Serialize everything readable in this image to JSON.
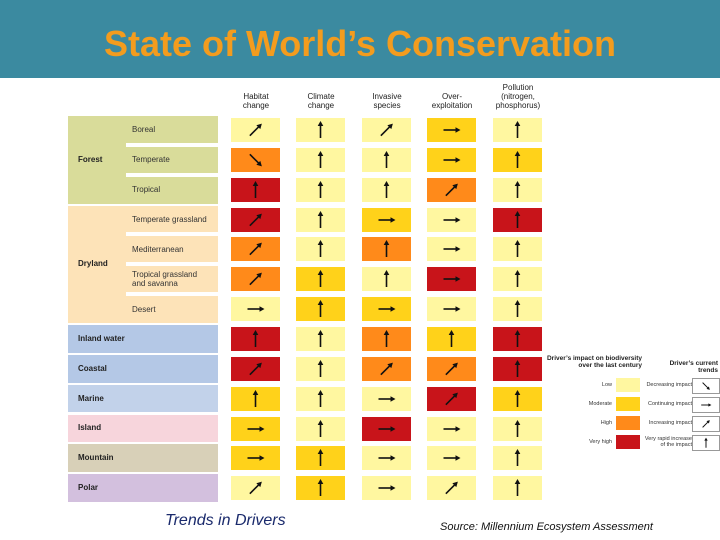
{
  "title": "State of World’s Conservation",
  "columns": [
    "Habitat\nchange",
    "Climate\nchange",
    "Invasive\nspecies",
    "Over-\nexploitation",
    "Pollution\n(nitrogen,\nphosphorus)"
  ],
  "groups": [
    {
      "label": "Forest",
      "color": "#d9dc9a",
      "subs": [
        "Boreal",
        "Temperate",
        "Tropical"
      ]
    },
    {
      "label": "Dryland",
      "color": "#fde3b8",
      "subs": [
        "Temperate grassland",
        "Mediterranean",
        "Tropical grassland\nand savanna",
        "Desert"
      ]
    },
    {
      "label": "Inland water",
      "color": "#b4c8e6",
      "subs": []
    },
    {
      "label": "Coastal",
      "color": "#b4c8e6",
      "subs": []
    },
    {
      "label": "Marine",
      "color": "#c2d2ea",
      "subs": []
    },
    {
      "label": "Island",
      "color": "#f7d5dc",
      "subs": []
    },
    {
      "label": "Mountain",
      "color": "#d8d0b8",
      "subs": []
    },
    {
      "label": "Polar",
      "color": "#d3c0de",
      "subs": []
    }
  ],
  "impact_colors": {
    "low": "#fff7a0",
    "moderate": "#ffd21a",
    "high": "#ff8a1a",
    "very_high": "#c8141a"
  },
  "grid": [
    [
      [
        "low",
        "ne"
      ],
      [
        "low",
        "n"
      ],
      [
        "low",
        "ne"
      ],
      [
        "moderate",
        "e"
      ],
      [
        "low",
        "n"
      ]
    ],
    [
      [
        "high",
        "se"
      ],
      [
        "low",
        "n"
      ],
      [
        "low",
        "n"
      ],
      [
        "moderate",
        "e"
      ],
      [
        "moderate",
        "n"
      ]
    ],
    [
      [
        "very_high",
        "n"
      ],
      [
        "low",
        "n"
      ],
      [
        "low",
        "n"
      ],
      [
        "high",
        "ne"
      ],
      [
        "low",
        "n"
      ]
    ],
    [
      [
        "very_high",
        "ne"
      ],
      [
        "low",
        "n"
      ],
      [
        "moderate",
        "e"
      ],
      [
        "low",
        "e"
      ],
      [
        "very_high",
        "n"
      ]
    ],
    [
      [
        "high",
        "ne"
      ],
      [
        "low",
        "n"
      ],
      [
        "high",
        "n"
      ],
      [
        "low",
        "e"
      ],
      [
        "low",
        "n"
      ]
    ],
    [
      [
        "high",
        "ne"
      ],
      [
        "moderate",
        "n"
      ],
      [
        "low",
        "n"
      ],
      [
        "very_high",
        "e"
      ],
      [
        "low",
        "n"
      ]
    ],
    [
      [
        "low",
        "e"
      ],
      [
        "moderate",
        "n"
      ],
      [
        "moderate",
        "e"
      ],
      [
        "low",
        "e"
      ],
      [
        "low",
        "n"
      ]
    ],
    [
      [
        "very_high",
        "n"
      ],
      [
        "low",
        "n"
      ],
      [
        "high",
        "n"
      ],
      [
        "moderate",
        "n"
      ],
      [
        "very_high",
        "n"
      ]
    ],
    [
      [
        "very_high",
        "ne"
      ],
      [
        "low",
        "n"
      ],
      [
        "high",
        "ne"
      ],
      [
        "high",
        "ne"
      ],
      [
        "very_high",
        "n"
      ]
    ],
    [
      [
        "moderate",
        "n"
      ],
      [
        "low",
        "n"
      ],
      [
        "low",
        "e"
      ],
      [
        "very_high",
        "ne"
      ],
      [
        "moderate",
        "n"
      ]
    ],
    [
      [
        "moderate",
        "e"
      ],
      [
        "low",
        "n"
      ],
      [
        "very_high",
        "e"
      ],
      [
        "low",
        "e"
      ],
      [
        "low",
        "n"
      ]
    ],
    [
      [
        "moderate",
        "e"
      ],
      [
        "moderate",
        "n"
      ],
      [
        "low",
        "e"
      ],
      [
        "low",
        "e"
      ],
      [
        "low",
        "n"
      ]
    ],
    [
      [
        "low",
        "ne"
      ],
      [
        "moderate",
        "n"
      ],
      [
        "low",
        "e"
      ],
      [
        "low",
        "ne"
      ],
      [
        "low",
        "n"
      ]
    ]
  ],
  "legend": {
    "impact_title": "Driver’s impact on biodiversity\nover the last century",
    "trend_title": "Driver’s current trends",
    "impacts": [
      {
        "label": "Low",
        "key": "low"
      },
      {
        "label": "Moderate",
        "key": "moderate"
      },
      {
        "label": "High",
        "key": "high"
      },
      {
        "label": "Very high",
        "key": "very_high"
      }
    ],
    "trends": [
      {
        "label": "Decreasing impact",
        "dir": "se"
      },
      {
        "label": "Continuing impact",
        "dir": "e"
      },
      {
        "label": "Increasing impact",
        "dir": "ne"
      },
      {
        "label": "Very rapid increase\nof the impact",
        "dir": "n"
      }
    ]
  },
  "caption_left": "Trends in Drivers",
  "caption_right": "Source:  Millennium Ecosystem Assessment"
}
